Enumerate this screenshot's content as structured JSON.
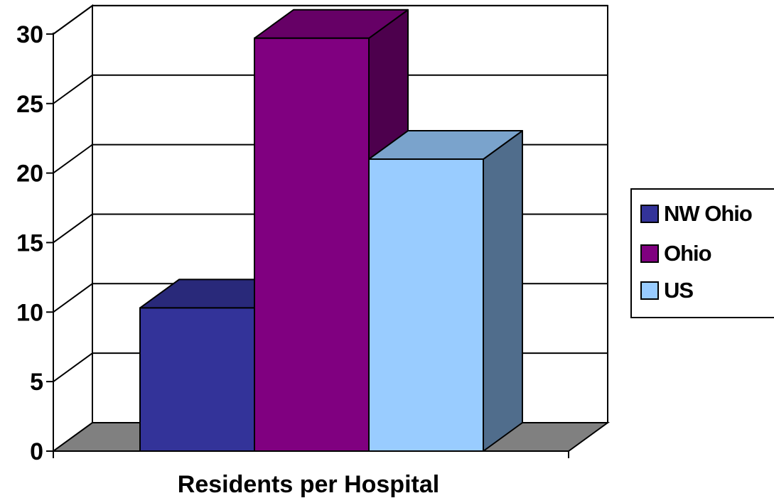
{
  "chart_data": {
    "type": "bar",
    "style": "3d-clustered-column",
    "categories": [
      "Residents per Hospital"
    ],
    "series": [
      {
        "name": "NW Ohio",
        "values": [
          10.3
        ],
        "color": "#333399",
        "top_color": "#29297a",
        "side_color": "#1f1f5c"
      },
      {
        "name": "Ohio",
        "values": [
          29.7
        ],
        "color": "#800080",
        "top_color": "#660066",
        "side_color": "#4d004d"
      },
      {
        "name": "US",
        "values": [
          21.0
        ],
        "color": "#99ccff",
        "top_color": "#7aa3cc",
        "side_color": "#506d8c"
      }
    ],
    "xlabel": "Residents per Hospital",
    "ylabel": "",
    "ylim": [
      0,
      30
    ],
    "yticks": [
      "0",
      "5",
      "10",
      "15",
      "20",
      "25",
      "30"
    ],
    "grid": true,
    "legend_position": "right"
  }
}
